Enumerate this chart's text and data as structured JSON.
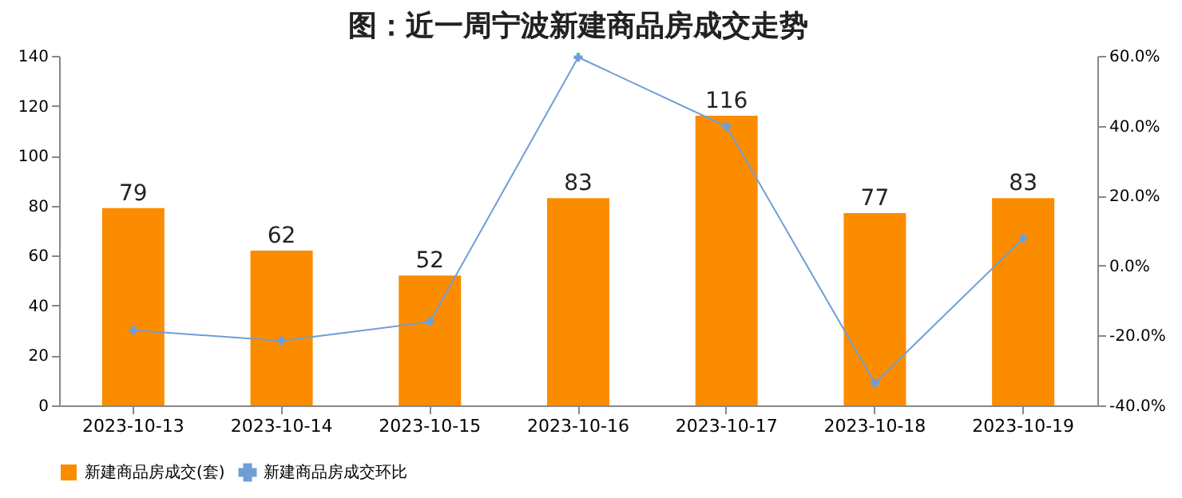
{
  "chart_data": {
    "type": "bar",
    "title": "图：近一周宁波新建商品房成交走势",
    "categories": [
      "2023-10-13",
      "2023-10-14",
      "2023-10-15",
      "2023-10-16",
      "2023-10-17",
      "2023-10-18",
      "2023-10-19"
    ],
    "series": [
      {
        "name": "新建商品房成交(套)",
        "color": "#fb8c00",
        "values": [
          79,
          62,
          52,
          83,
          116,
          77,
          83
        ],
        "value_labels": [
          "79",
          "62",
          "52",
          "83",
          "116",
          "77",
          "83"
        ]
      },
      {
        "name": "新建商品房成交环比",
        "type": "line",
        "axis": "y2",
        "color": "#6f9ed6",
        "marker": "cross",
        "values": [
          -18.5,
          -21.5,
          -16.1,
          59.6,
          39.8,
          -33.6,
          7.8
        ]
      }
    ],
    "ylim": [
      0,
      140
    ],
    "yticks": [
      0,
      20,
      40,
      60,
      80,
      100,
      120,
      140
    ],
    "y2lim": [
      -40,
      60
    ],
    "y2ticks": [
      {
        "value": -40,
        "label": "-40.0%"
      },
      {
        "value": -20,
        "label": "-20.0%"
      },
      {
        "value": 0,
        "label": "0.0%"
      },
      {
        "value": 20,
        "label": "20.0%"
      },
      {
        "value": 40,
        "label": "40.0%"
      },
      {
        "value": 60,
        "label": "60.0%"
      }
    ],
    "grid": false,
    "legend": "bottom"
  }
}
